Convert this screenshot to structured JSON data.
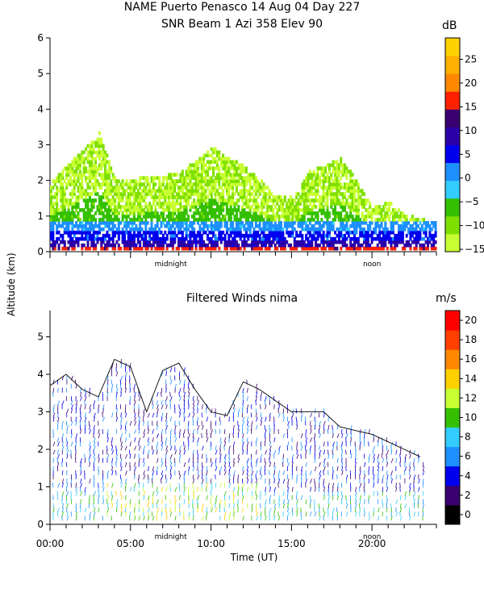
{
  "header": {
    "title_line1": "NAME Puerto Penasco  14 Aug 04 Day 227",
    "title_line2": "SNR Beam 1 Azi 358 Elev 90",
    "shared_ylabel": "Altitude (km)"
  },
  "chart_data": [
    {
      "type": "heatmap",
      "title": "SNR Beam 1 Azi 358 Elev 90",
      "ylabel": "Altitude (km)",
      "ylim": [
        0,
        6
      ],
      "yticks": [
        "0",
        "1",
        "2",
        "3",
        "4",
        "5",
        "6"
      ],
      "xlim": [
        0,
        24
      ],
      "inner_x_labels": [
        {
          "x": 7.5,
          "label": "midnight"
        },
        {
          "x": 20,
          "label": "noon"
        }
      ],
      "colorbar": {
        "unit": "dB",
        "range": [
          -15,
          30
        ],
        "ticks": [
          "25",
          "20",
          "15",
          "10",
          "5",
          "0",
          "−5",
          "−10",
          "−15"
        ],
        "colors": [
          "#c8ff32",
          "#7fe000",
          "#34c000",
          "#33ccff",
          "#1e90ff",
          "#0000ee",
          "#2b00a8",
          "#3a0070",
          "#ff2000",
          "#ff8800",
          "#ffb000",
          "#ffd000"
        ]
      },
      "profile": [
        {
          "x": 0,
          "top": 1.9
        },
        {
          "x": 1,
          "top": 2.4
        },
        {
          "x": 2,
          "top": 2.8
        },
        {
          "x": 3,
          "top": 3.3
        },
        {
          "x": 4,
          "top": 2.0
        },
        {
          "x": 5,
          "top": 2.0
        },
        {
          "x": 6,
          "top": 2.1
        },
        {
          "x": 7,
          "top": 2.1
        },
        {
          "x": 8,
          "top": 2.2
        },
        {
          "x": 9,
          "top": 2.5
        },
        {
          "x": 10,
          "top": 2.9
        },
        {
          "x": 11,
          "top": 2.6
        },
        {
          "x": 12,
          "top": 2.4
        },
        {
          "x": 13,
          "top": 2.0
        },
        {
          "x": 14,
          "top": 1.5
        },
        {
          "x": 15,
          "top": 1.5
        },
        {
          "x": 16,
          "top": 2.2
        },
        {
          "x": 17,
          "top": 2.4
        },
        {
          "x": 18,
          "top": 2.6
        },
        {
          "x": 19,
          "top": 2.0
        },
        {
          "x": 20,
          "top": 1.2
        },
        {
          "x": 21,
          "top": 1.4
        },
        {
          "x": 22,
          "top": 1.0
        },
        {
          "x": 23,
          "top": 0.9
        },
        {
          "x": 24,
          "top": 0.8
        }
      ]
    },
    {
      "type": "scatter",
      "title": "Filtered Winds nima",
      "xlabel": "Time (UT)",
      "ylim": [
        0,
        5.7
      ],
      "yticks": [
        "0",
        "1",
        "2",
        "3",
        "4",
        "5"
      ],
      "xlim": [
        0,
        24
      ],
      "xticks": [
        {
          "x": 0,
          "label": "00:00"
        },
        {
          "x": 5,
          "label": "05:00"
        },
        {
          "x": 10,
          "label": "10:00"
        },
        {
          "x": 15,
          "label": "15:00"
        },
        {
          "x": 20,
          "label": "20:00"
        }
      ],
      "inner_x_labels": [
        {
          "x": 7.5,
          "label": "midnight"
        },
        {
          "x": 20,
          "label": "noon"
        }
      ],
      "colorbar": {
        "unit": "m/s",
        "range": [
          0,
          22
        ],
        "ticks": [
          "20",
          "18",
          "16",
          "14",
          "12",
          "10",
          "8",
          "6",
          "4",
          "2",
          "0"
        ],
        "colors": [
          "#000000",
          "#3a0070",
          "#0000ee",
          "#1e90ff",
          "#33ccff",
          "#34c000",
          "#c8ff32",
          "#ffd000",
          "#ff8800",
          "#ff4000",
          "#ff0000"
        ]
      },
      "profile": [
        {
          "x": 0,
          "top": 3.7
        },
        {
          "x": 1,
          "top": 4.0
        },
        {
          "x": 2,
          "top": 3.6
        },
        {
          "x": 3,
          "top": 3.4
        },
        {
          "x": 4,
          "top": 4.4
        },
        {
          "x": 5,
          "top": 4.2
        },
        {
          "x": 6,
          "top": 3.0
        },
        {
          "x": 7,
          "top": 4.1
        },
        {
          "x": 8,
          "top": 4.3
        },
        {
          "x": 9,
          "top": 3.6
        },
        {
          "x": 10,
          "top": 3.0
        },
        {
          "x": 11,
          "top": 2.9
        },
        {
          "x": 12,
          "top": 3.8
        },
        {
          "x": 13,
          "top": 3.6
        },
        {
          "x": 14,
          "top": 3.3
        },
        {
          "x": 15,
          "top": 3.0
        },
        {
          "x": 16,
          "top": 3.0
        },
        {
          "x": 17,
          "top": 3.0
        },
        {
          "x": 18,
          "top": 2.6
        },
        {
          "x": 19,
          "top": 2.5
        },
        {
          "x": 20,
          "top": 2.4
        },
        {
          "x": 21,
          "top": 2.2
        },
        {
          "x": 22,
          "top": 2.0
        },
        {
          "x": 23,
          "top": 1.8
        }
      ]
    }
  ]
}
